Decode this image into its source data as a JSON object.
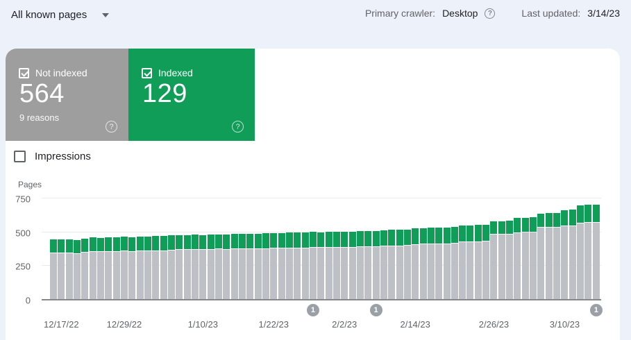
{
  "topbar": {
    "filter_label": "All known pages",
    "crawler_label": "Primary crawler:",
    "crawler_value": "Desktop",
    "updated_label": "Last updated:",
    "updated_value": "3/14/23"
  },
  "cards": {
    "not_indexed": {
      "label": "Not indexed",
      "value": "564",
      "reasons": "9 reasons",
      "checked": true,
      "color": "#9e9e9e"
    },
    "indexed": {
      "label": "Indexed",
      "value": "129",
      "checked": true,
      "color": "#109d58"
    }
  },
  "impressions": {
    "label": "Impressions",
    "checked": false
  },
  "chart_data": {
    "type": "bar",
    "stacked": true,
    "ylabel": "Pages",
    "ylim": [
      0,
      750
    ],
    "yticks": [
      0,
      250,
      500,
      750
    ],
    "grid": true,
    "x_labels": [
      "12/17/22",
      "12/29/22",
      "1/10/23",
      "1/22/23",
      "2/2/23",
      "2/14/23",
      "2/26/23",
      "3/10/23"
    ],
    "x_label_bar_indices": [
      2,
      10,
      20,
      29,
      38,
      47,
      57,
      66
    ],
    "series": [
      {
        "name": "Not indexed",
        "color": "#bdc1c6",
        "values": [
          340,
          337,
          338,
          335,
          342,
          350,
          348,
          351,
          349,
          352,
          350,
          353,
          352,
          355,
          354,
          362,
          364,
          363,
          365,
          364,
          366,
          368,
          367,
          369,
          370,
          371,
          370,
          372,
          373,
          374,
          375,
          376,
          377,
          378,
          378,
          380,
          381,
          380,
          382,
          383,
          383,
          385,
          390,
          392,
          393,
          395,
          403,
          404,
          406,
          407,
          408,
          410,
          420,
          421,
          423,
          425,
          478,
          479,
          480,
          490,
          491,
          493,
          528,
          530,
          531,
          540,
          542,
          562,
          564,
          564
        ]
      },
      {
        "name": "Indexed",
        "color": "#109d58",
        "values": [
          96,
          98,
          97,
          99,
          100,
          102,
          101,
          103,
          102,
          104,
          103,
          105,
          104,
          106,
          107,
          103,
          105,
          104,
          106,
          105,
          107,
          106,
          108,
          107,
          109,
          108,
          110,
          109,
          111,
          110,
          111,
          112,
          111,
          113,
          112,
          113,
          112,
          114,
          113,
          115,
          114,
          115,
          115,
          116,
          117,
          115,
          115,
          117,
          118,
          117,
          118,
          118,
          118,
          119,
          120,
          120,
          92,
          93,
          93,
          104,
          105,
          106,
          100,
          101,
          100,
          114,
          115,
          128,
          129,
          129
        ]
      }
    ],
    "markers": [
      {
        "label": "1",
        "bar_index": 34
      },
      {
        "label": "1",
        "bar_index": 42
      },
      {
        "label": "1",
        "bar_index": 70
      }
    ]
  }
}
